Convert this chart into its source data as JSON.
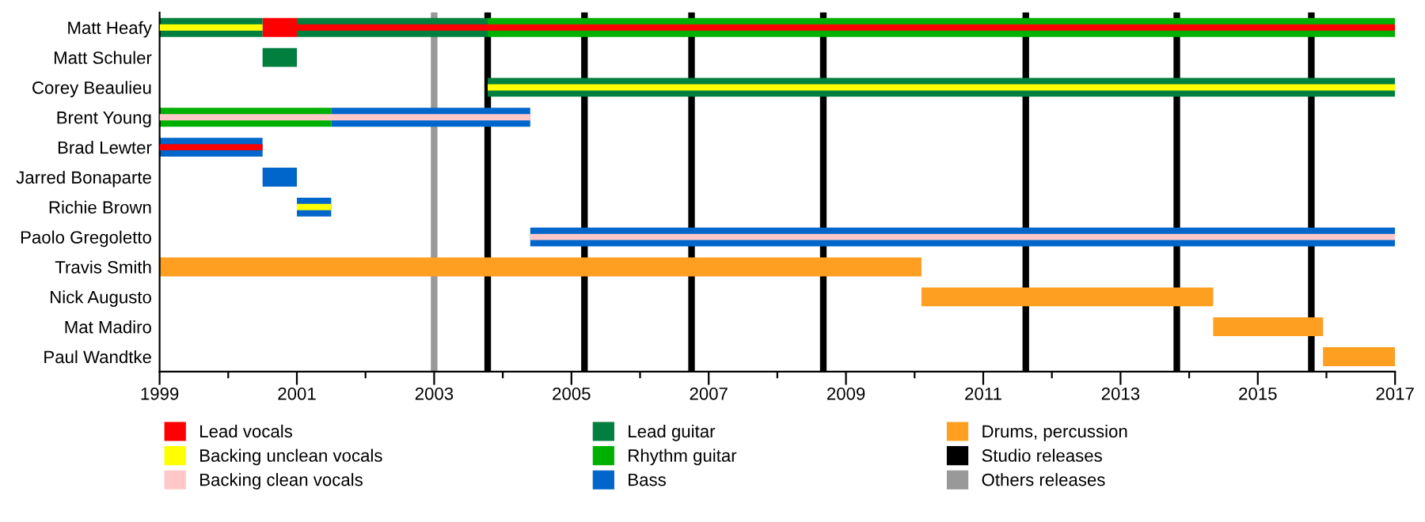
{
  "chart_data": {
    "type": "bar",
    "orientation": "horizontal",
    "categories": [
      "Matt Heafy",
      "Matt Schuler",
      "Corey Beaulieu",
      "Brent Young",
      "Brad Lewter",
      "Jarred Bonaparte",
      "Richie Brown",
      "Paolo Gregoletto",
      "Travis Smith",
      "Nick Augusto",
      "Mat Madiro",
      "Paul Wandtke"
    ],
    "series": [
      {
        "name": "Lead vocals",
        "color": "#ff0000",
        "base": [
          2000.5,
          null,
          null,
          null,
          1999,
          null,
          null,
          null,
          null,
          null,
          null,
          null
        ],
        "values": [
          0.5,
          null,
          null,
          null,
          1.5,
          null,
          null,
          null,
          null,
          null,
          null,
          null
        ]
      },
      {
        "color": "#ff0000",
        "base": [
          2001,
          null,
          null,
          null,
          null,
          null,
          null,
          null,
          null,
          null,
          null,
          null
        ],
        "values": [
          16,
          null,
          null,
          null,
          null,
          null,
          null,
          null,
          null,
          null,
          null,
          null
        ]
      },
      {
        "name": "Backing unclean vocals",
        "color": "#ffff00",
        "base": [
          1999,
          null,
          2003.78,
          null,
          null,
          null,
          2001,
          null,
          null,
          null,
          null,
          null
        ],
        "values": [
          1.5,
          null,
          13.22,
          null,
          null,
          null,
          0.5,
          null,
          null,
          null,
          null,
          null
        ]
      },
      {
        "name": "Backing clean vocals",
        "color": "#ffc8c8",
        "base": [
          null,
          null,
          null,
          1999,
          null,
          null,
          null,
          2004.4,
          null,
          null,
          null,
          null
        ],
        "values": [
          null,
          null,
          null,
          5.4,
          null,
          null,
          null,
          12.6,
          null,
          null,
          null,
          null
        ]
      },
      {
        "name": "Lead guitar",
        "color": "#007f3f",
        "base": [
          1999,
          2000.5,
          2003.78,
          null,
          null,
          null,
          null,
          null,
          null,
          null,
          null,
          null
        ],
        "values": [
          1.5,
          0.5,
          13.22,
          null,
          null,
          null,
          null,
          null,
          null,
          null,
          null,
          null
        ]
      },
      {
        "color": "#007f3f",
        "base": [
          2001,
          null,
          null,
          null,
          null,
          null,
          null,
          null,
          null,
          null,
          null,
          null
        ],
        "values": [
          2.78,
          null,
          null,
          null,
          null,
          null,
          null,
          null,
          null,
          null,
          null,
          null
        ]
      },
      {
        "name": "Rhythm guitar",
        "color": "#00b000",
        "base": [
          2003.78,
          null,
          null,
          1999,
          null,
          null,
          null,
          null,
          null,
          null,
          null,
          null
        ],
        "values": [
          13.22,
          null,
          null,
          2.5,
          null,
          null,
          null,
          null,
          null,
          null,
          null,
          null
        ]
      },
      {
        "name": "Bass",
        "color": "#0066cc",
        "base": [
          null,
          null,
          null,
          2001.5,
          1999,
          2000.5,
          2001,
          2004.4,
          null,
          null,
          null,
          null
        ],
        "values": [
          null,
          null,
          null,
          2.9,
          1.5,
          0.5,
          0.5,
          12.6,
          null,
          null,
          null,
          null
        ]
      },
      {
        "name": "Drums, percussion",
        "color": "#ff9f22",
        "base": [
          null,
          null,
          null,
          null,
          null,
          null,
          null,
          null,
          1999,
          2010.1,
          2014.35,
          2015.95
        ],
        "values": [
          null,
          null,
          null,
          null,
          null,
          null,
          null,
          null,
          11.1,
          4.25,
          1.6,
          1.05
        ]
      }
    ],
    "ref_lines": [
      {
        "axis": "x",
        "value": 2003.78,
        "label": "Studio releases",
        "color": "#000000"
      },
      {
        "axis": "x",
        "value": 2005.19,
        "color": "#000000"
      },
      {
        "axis": "x",
        "value": 2006.75,
        "color": "#000000"
      },
      {
        "axis": "x",
        "value": 2008.67,
        "color": "#000000"
      },
      {
        "axis": "x",
        "value": 2011.62,
        "color": "#000000"
      },
      {
        "axis": "x",
        "value": 2013.82,
        "color": "#000000"
      },
      {
        "axis": "x",
        "value": 2015.78,
        "color": "#000000"
      },
      {
        "axis": "x",
        "value": 2003.0,
        "label": "Others releases",
        "color": "#999999"
      }
    ],
    "xlim": [
      1999,
      2017
    ],
    "xticks": [
      1999,
      {
        "value": 2000,
        "label": null
      },
      2001,
      {
        "value": 2002,
        "label": null
      },
      2003,
      {
        "value": 2004,
        "label": null
      },
      2005,
      {
        "value": 2006,
        "label": null
      },
      2007,
      {
        "value": 2008,
        "label": null
      },
      2009,
      {
        "value": 2010,
        "label": null
      },
      2011,
      {
        "value": 2012,
        "label": null
      },
      2013,
      {
        "value": 2014,
        "label": null
      },
      2015,
      {
        "value": 2016,
        "label": null
      },
      2017
    ],
    "grid": false,
    "legend": "bottom"
  }
}
